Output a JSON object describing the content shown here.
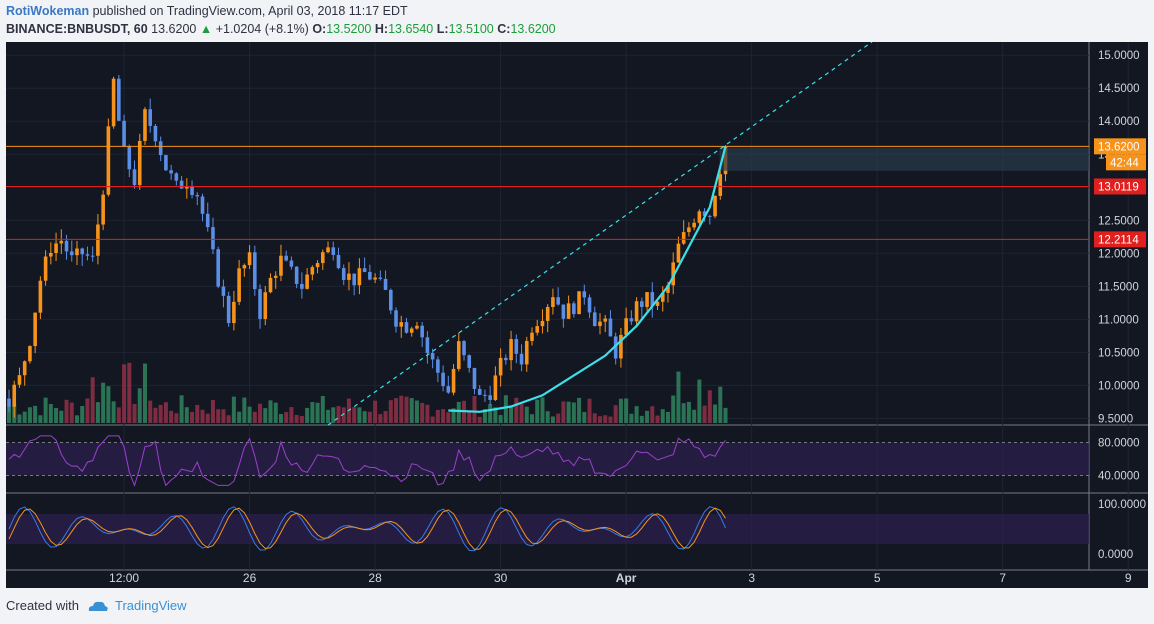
{
  "header": {
    "author": "RotiWokeman",
    "published_text": " published on TradingView.com, April 03, 2018 11:17 EDT",
    "symbol": "BINANCE:BNBUSDT, 60",
    "last": "13.6200",
    "change": "+1.0204 (+8.1%)",
    "o_label": "O:",
    "o_value": "13.5200",
    "h_label": "H:",
    "h_value": "13.6540",
    "l_label": "L:",
    "l_value": "13.5100",
    "c_label": "C:",
    "c_value": "13.6200"
  },
  "footer": {
    "created_with": "Created with",
    "brand": "TradingView"
  },
  "colors": {
    "bg": "#131722",
    "candle_up": "#f7931a",
    "candle_down": "#5b8ee6",
    "level": "#e0201e",
    "curve": "#3ee0e8",
    "rsi": "#9b3fcf",
    "vol_up": "#2f7d5b",
    "vol_down": "#8a2f45"
  },
  "chart_data": {
    "type": "candlestick",
    "symbol": "BINANCE:BNBUSDT",
    "interval": "60",
    "ylim": [
      9.4,
      15.2
    ],
    "y_ticks": [
      "15.0000",
      "14.5000",
      "14.0000",
      "13.5000",
      "13.0000",
      "12.5000",
      "12.0000",
      "11.5000",
      "11.0000",
      "10.5000",
      "10.0000",
      "9.5000"
    ],
    "x_ticks": [
      "12:00",
      "26",
      "28",
      "30",
      "Apr",
      "3",
      "5",
      "7",
      "9"
    ],
    "x_tick_index": [
      22,
      46,
      70,
      94,
      118,
      142,
      166,
      190,
      214
    ],
    "n_bars": 138,
    "close_points": [
      [
        0,
        9.8
      ],
      [
        2,
        10.1
      ],
      [
        4,
        10.7
      ],
      [
        6,
        11.6
      ],
      [
        8,
        12.1
      ],
      [
        10,
        12.2
      ],
      [
        12,
        11.9
      ],
      [
        14,
        12.0
      ],
      [
        16,
        11.9
      ],
      [
        18,
        13.0
      ],
      [
        20,
        14.6
      ],
      [
        21,
        14.0
      ],
      [
        22,
        13.5
      ],
      [
        24,
        13.1
      ],
      [
        26,
        14.1
      ],
      [
        28,
        13.8
      ],
      [
        30,
        13.3
      ],
      [
        32,
        13.0
      ],
      [
        34,
        13.1
      ],
      [
        36,
        12.9
      ],
      [
        38,
        12.3
      ],
      [
        40,
        11.6
      ],
      [
        42,
        11.0
      ],
      [
        44,
        11.7
      ],
      [
        46,
        11.9
      ],
      [
        48,
        11.1
      ],
      [
        50,
        11.6
      ],
      [
        52,
        11.9
      ],
      [
        54,
        11.7
      ],
      [
        56,
        11.5
      ],
      [
        58,
        11.8
      ],
      [
        60,
        12.0
      ],
      [
        62,
        12.1
      ],
      [
        64,
        11.7
      ],
      [
        66,
        11.6
      ],
      [
        68,
        11.7
      ],
      [
        70,
        11.6
      ],
      [
        72,
        11.4
      ],
      [
        74,
        11.0
      ],
      [
        76,
        10.9
      ],
      [
        78,
        11.0
      ],
      [
        80,
        10.5
      ],
      [
        82,
        10.2
      ],
      [
        84,
        9.9
      ],
      [
        86,
        10.6
      ],
      [
        88,
        10.2
      ],
      [
        90,
        9.8
      ],
      [
        92,
        9.9
      ],
      [
        94,
        10.3
      ],
      [
        96,
        10.6
      ],
      [
        98,
        10.4
      ],
      [
        100,
        10.9
      ],
      [
        102,
        11.1
      ],
      [
        104,
        11.4
      ],
      [
        106,
        11.1
      ],
      [
        108,
        11.2
      ],
      [
        110,
        11.4
      ],
      [
        112,
        11.0
      ],
      [
        114,
        10.9
      ],
      [
        116,
        10.5
      ],
      [
        118,
        10.9
      ],
      [
        120,
        11.2
      ],
      [
        122,
        11.3
      ],
      [
        124,
        11.2
      ],
      [
        126,
        11.5
      ],
      [
        128,
        12.1
      ],
      [
        130,
        12.4
      ],
      [
        132,
        12.7
      ],
      [
        134,
        12.6
      ],
      [
        136,
        13.3
      ],
      [
        137,
        13.62
      ]
    ],
    "horizontal_levels": [
      {
        "value": 13.62,
        "label": "13.6200",
        "color": "#f7931a"
      },
      {
        "value": 13.0119,
        "label": "13.0119",
        "color": "#e0201e"
      },
      {
        "value": 12.2114,
        "label": "12.2114",
        "color": "#e0201e"
      }
    ],
    "countdown_label": "42:44",
    "trendline": {
      "from": [
        61,
        9.4
      ],
      "to": [
        165,
        15.2
      ],
      "style": "dashed"
    },
    "parabola_points": [
      [
        84,
        9.62
      ],
      [
        90,
        9.6
      ],
      [
        96,
        9.68
      ],
      [
        102,
        9.85
      ],
      [
        108,
        10.15
      ],
      [
        114,
        10.45
      ],
      [
        120,
        10.9
      ],
      [
        126,
        11.5
      ],
      [
        130,
        12.1
      ],
      [
        134,
        12.7
      ],
      [
        137,
        13.62
      ]
    ],
    "rsi": {
      "ticks": [
        "80.0000",
        "40.0000"
      ],
      "band": [
        40,
        80
      ],
      "ylim": [
        20,
        100
      ]
    },
    "stochastic": {
      "ticks": [
        "100.0000",
        "0.0000"
      ],
      "band": [
        20,
        80
      ],
      "ylim": [
        -20,
        120
      ]
    }
  }
}
